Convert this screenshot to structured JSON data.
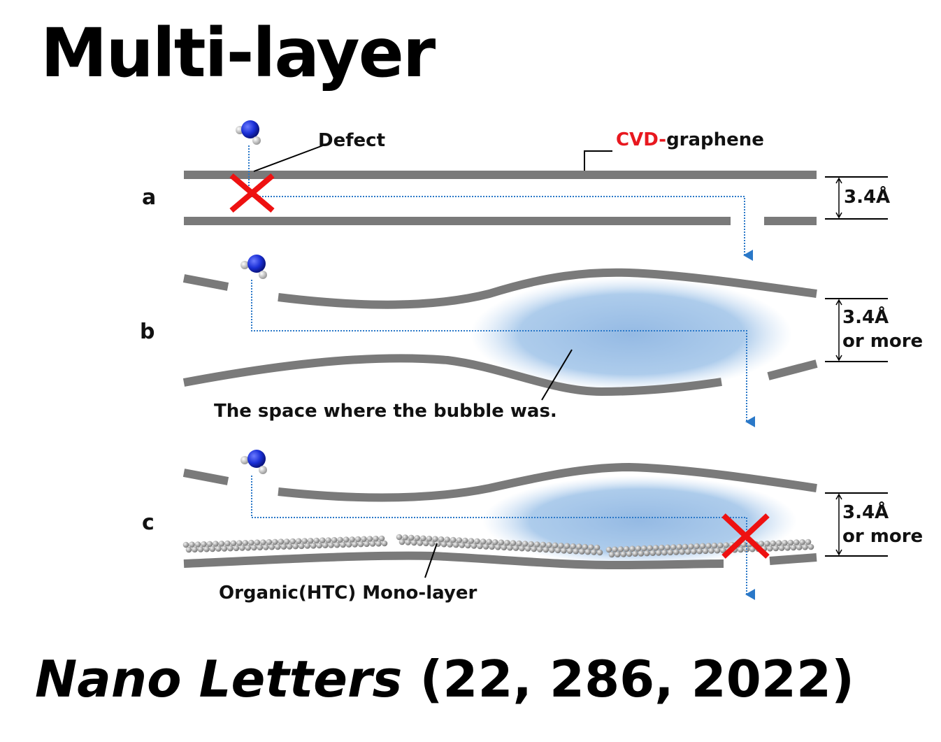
{
  "title": "Multi-layer",
  "panels": [
    {
      "letter": "a",
      "spacing": "3.4Å",
      "spacing_extra": ""
    },
    {
      "letter": "b",
      "spacing": "3.4Å",
      "spacing_extra": "or more"
    },
    {
      "letter": "c",
      "spacing": "3.4Å",
      "spacing_extra": "or more"
    }
  ],
  "labels": {
    "defect": "Defect",
    "cvd_prefix": "CVD-",
    "cvd_suffix": "graphene",
    "bubble_space": "The space where the bubble was.",
    "monolayer": "Organic(HTC) Mono-layer"
  },
  "citation": {
    "journal": "Nano Letters",
    "details": "(22, 286, 2022)"
  },
  "colors": {
    "graphene": "#7a7a7a",
    "cvd_red": "#e8181f",
    "block_x": "#ee1111",
    "path_blue": "#2a78c8",
    "bubble": "#9fc3e8",
    "nitrogen": "#1a2fd6"
  },
  "icons": [
    "ammonia-molecule-icon",
    "block-x-icon",
    "arrowhead-icon"
  ]
}
